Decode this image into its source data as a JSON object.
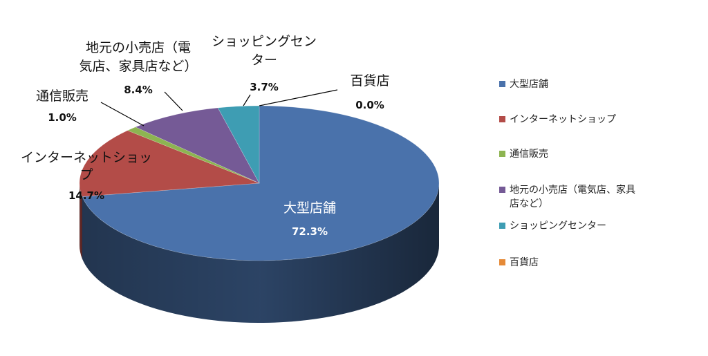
{
  "chart_data": {
    "type": "pie",
    "style": "3d",
    "legend_position": "right",
    "slices": [
      {
        "label": "大型店舗",
        "value": 72.3,
        "value_text": "72.3%",
        "color": "#4a72ab",
        "label_lines": [
          "大型店舗"
        ],
        "legend_lines": [
          "大型店舗"
        ]
      },
      {
        "label": "インターネットショップ",
        "value": 14.7,
        "value_text": "14.7%",
        "color": "#b34c48",
        "label_lines": [
          "インターネットショッ",
          "プ"
        ],
        "legend_lines": [
          "インターネットショップ"
        ]
      },
      {
        "label": "通信販売",
        "value": 1.0,
        "value_text": "1.0%",
        "color": "#8db451",
        "label_lines": [
          "通信販売"
        ],
        "legend_lines": [
          "通信販売"
        ]
      },
      {
        "label": "地元の小売店（電気店、家具店など）",
        "value": 8.4,
        "value_text": "8.4%",
        "color": "#755a96",
        "label_lines": [
          "地元の小売店（電",
          "気店、家具店など）"
        ],
        "legend_lines": [
          "地元の小売店（電気店、家具",
          "店など）"
        ]
      },
      {
        "label": "ショッピングセンター",
        "value": 3.7,
        "value_text": "3.7%",
        "color": "#3e9db3",
        "label_lines": [
          "ショッピングセン",
          "ター"
        ],
        "legend_lines": [
          "ショッピングセンター"
        ]
      },
      {
        "label": "百貨店",
        "value": 0.0,
        "value_text": "0.0%",
        "color": "#e58a38",
        "label_lines": [
          "百貨店"
        ],
        "legend_lines": [
          "百貨店"
        ]
      }
    ]
  }
}
